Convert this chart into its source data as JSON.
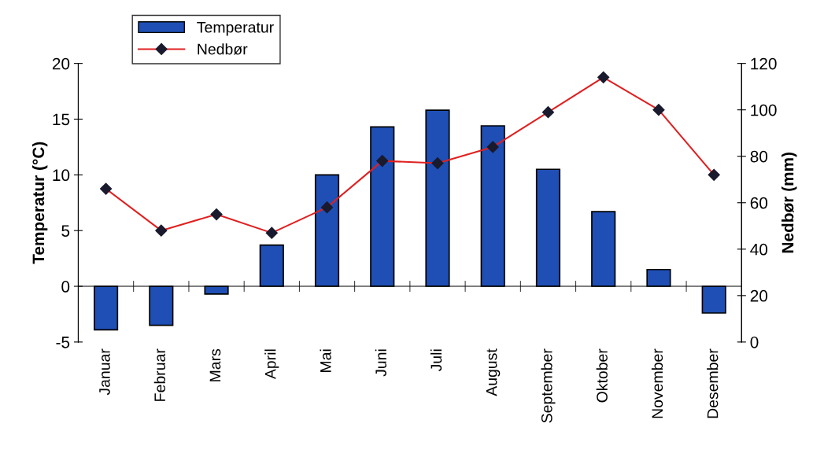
{
  "chart_data": {
    "type": "bar",
    "categories": [
      "Januar",
      "Februar",
      "Mars",
      "April",
      "Mai",
      "Juni",
      "Juli",
      "August",
      "September",
      "Oktober",
      "November",
      "Desember"
    ],
    "series": [
      {
        "name": "Temperatur",
        "color": "#1f4fb4",
        "values": [
          -3.9,
          -3.5,
          -0.7,
          3.7,
          10.0,
          14.3,
          15.8,
          14.4,
          10.5,
          6.7,
          1.5,
          -2.4
        ]
      },
      {
        "name": "Nedbør",
        "type": "line",
        "axis": "y2",
        "color": "#e02020",
        "marker": "diamond",
        "values": [
          66,
          48,
          55,
          47,
          58,
          78,
          77,
          84,
          99,
          114,
          100,
          72
        ]
      }
    ],
    "ylabel": "Temperatur (°C)",
    "y2label": "Nedbør (mm)",
    "ylim": [
      -5,
      20
    ],
    "yticks": [
      -5,
      0,
      5,
      10,
      15,
      20
    ],
    "y2lim": [
      0,
      120
    ],
    "y2ticks": [
      0,
      20,
      40,
      60,
      80,
      100,
      120
    ],
    "legend": "top left"
  }
}
